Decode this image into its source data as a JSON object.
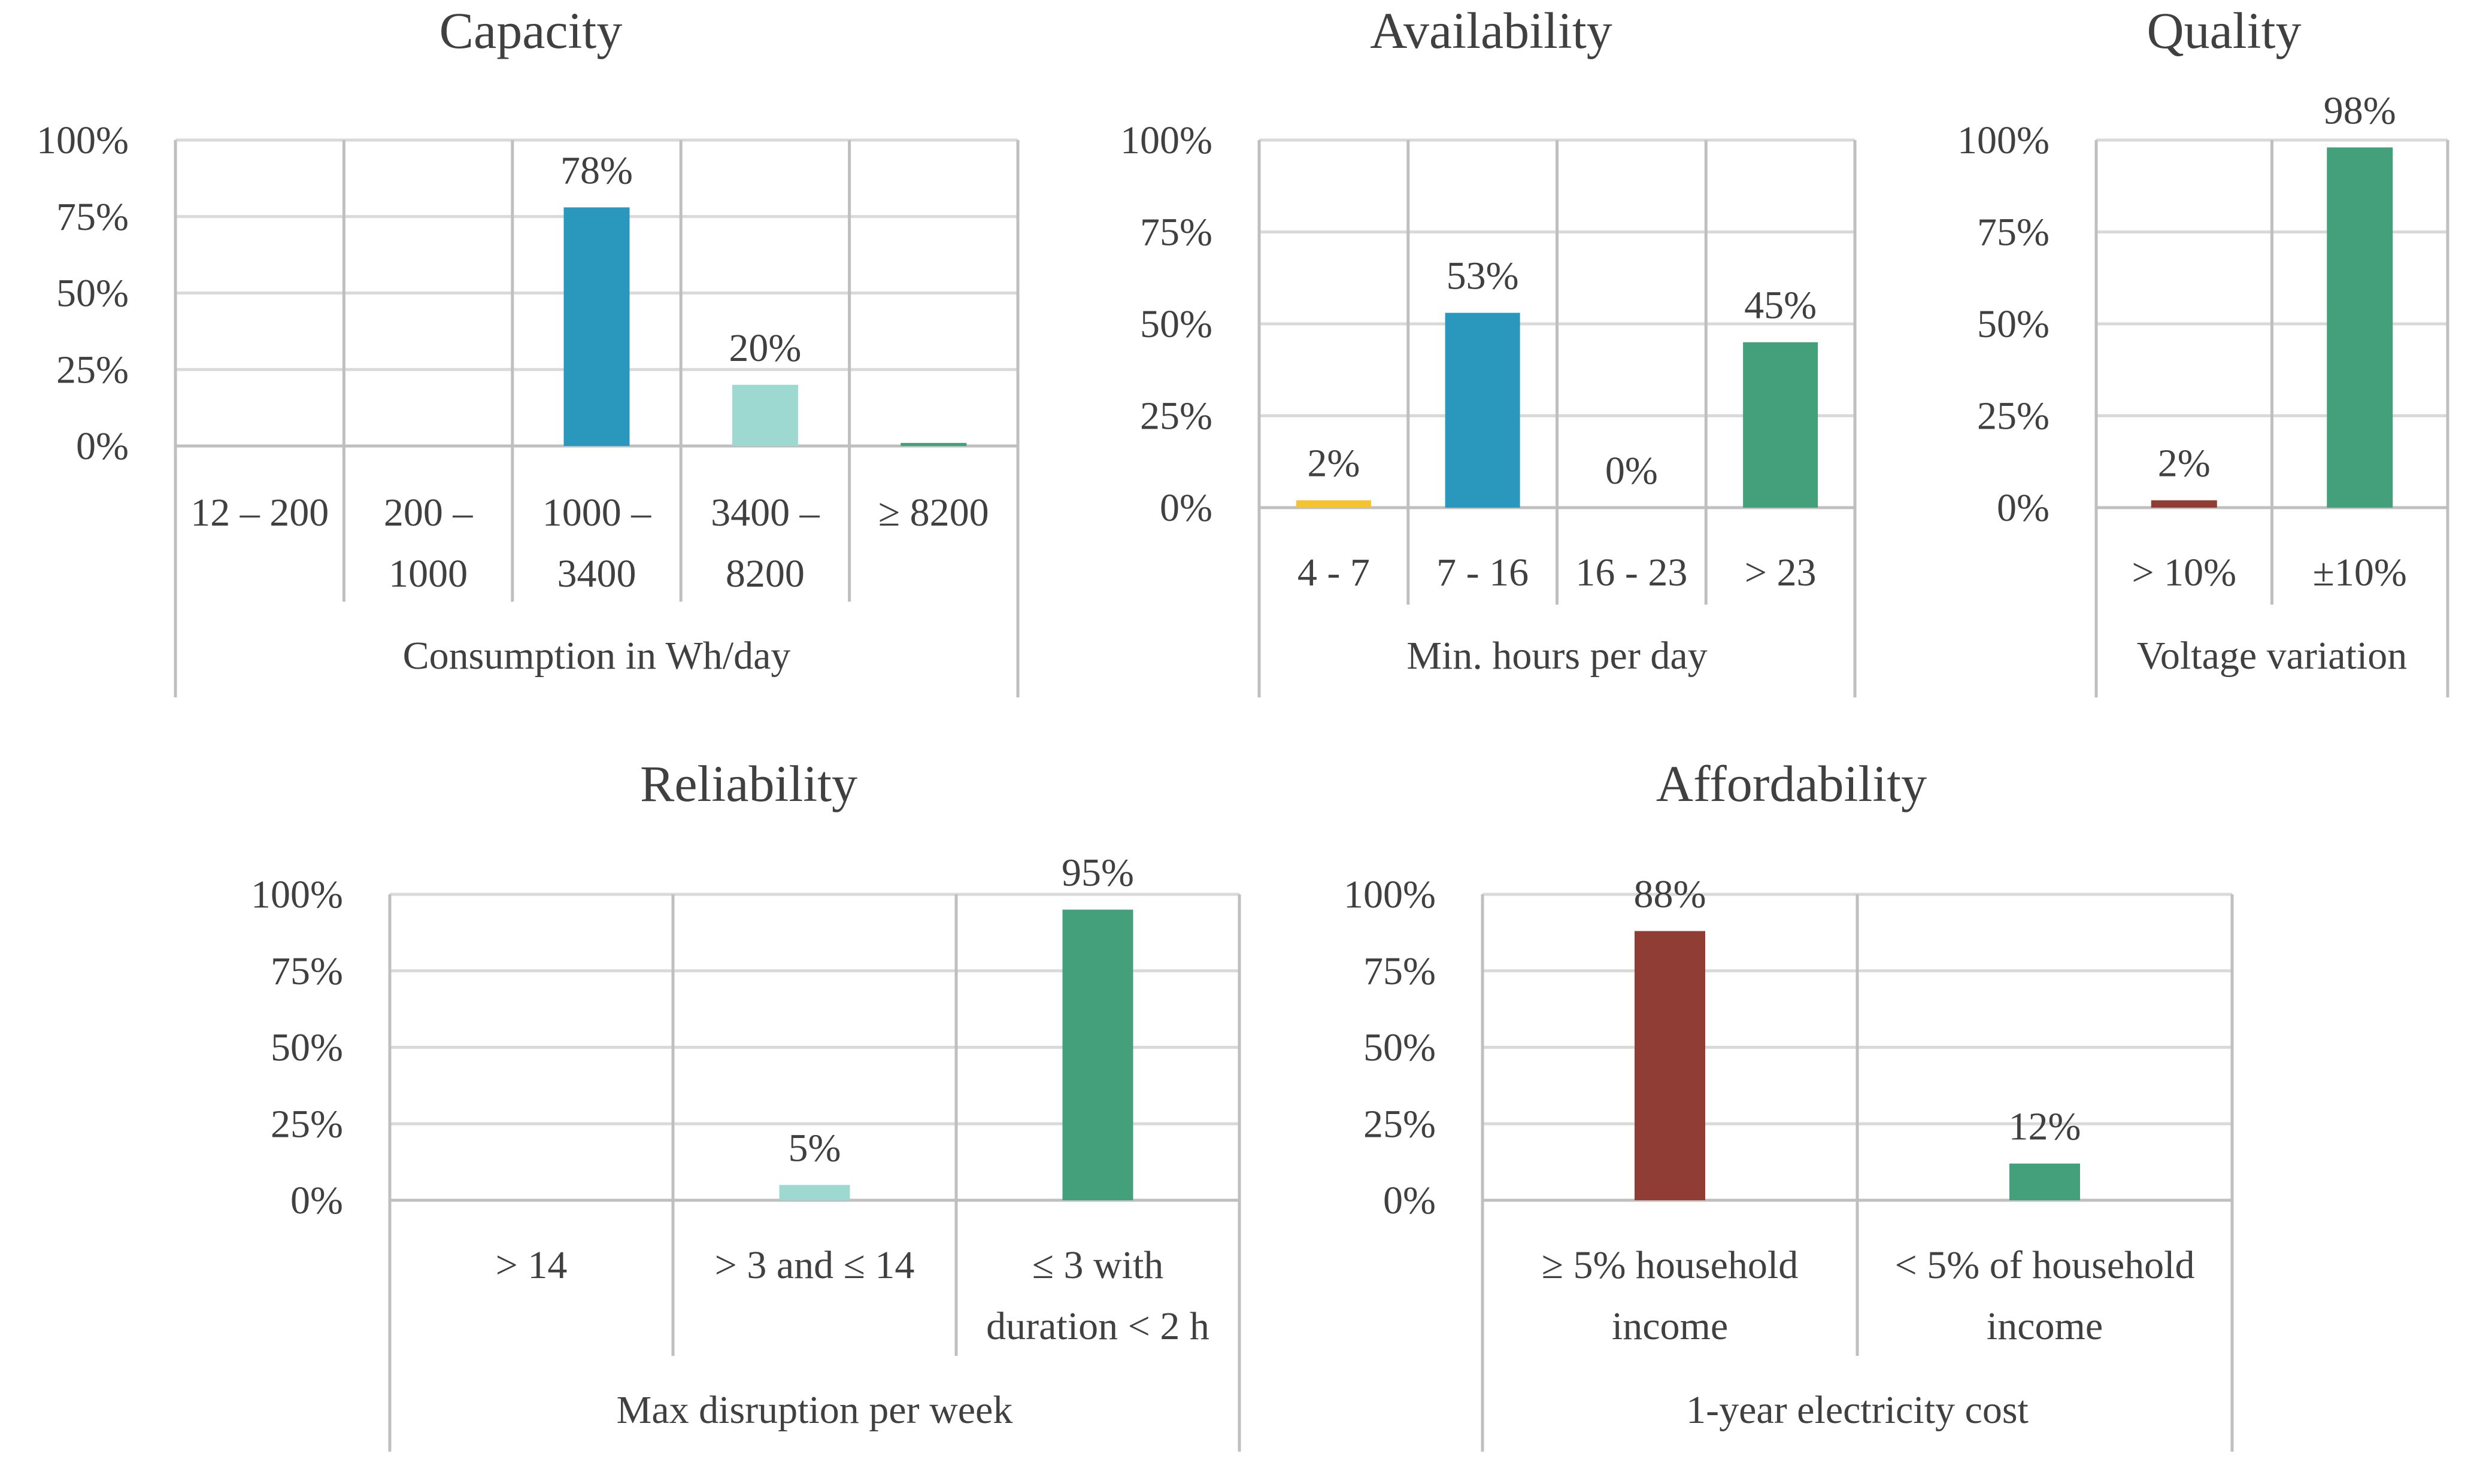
{
  "colors": {
    "yellow": "#f4c430",
    "blue": "#2a97bc",
    "lightteal": "#9ed9d1",
    "green": "#43a07a",
    "red": "#8f3d35"
  },
  "chart_data": [
    {
      "id": "capacity",
      "type": "bar",
      "title": "Capacity",
      "xlabel": "Consumption in Wh/day",
      "ylim": [
        0,
        100
      ],
      "yticks": [
        "0%",
        "25%",
        "50%",
        "75%",
        "100%"
      ],
      "categories": [
        [
          "12 – 200"
        ],
        [
          "200 –",
          "1000"
        ],
        [
          "1000 –",
          "3400"
        ],
        [
          "3400 –",
          "8200"
        ],
        [
          "≥ 8200"
        ]
      ],
      "values": [
        0,
        0,
        78,
        20,
        1
      ],
      "labels": [
        "",
        "",
        "78%",
        "20%",
        ""
      ],
      "bar_colors": [
        "blue",
        "blue",
        "blue",
        "lightteal",
        "green"
      ]
    },
    {
      "id": "availability",
      "type": "bar",
      "title": "Availability",
      "xlabel": "Min. hours per day",
      "ylim": [
        0,
        100
      ],
      "yticks": [
        "0%",
        "25%",
        "50%",
        "75%",
        "100%"
      ],
      "categories": [
        [
          "4 - 7"
        ],
        [
          "7 - 16"
        ],
        [
          "16 - 23"
        ],
        [
          "> 23"
        ]
      ],
      "values": [
        2,
        53,
        0,
        45
      ],
      "labels": [
        "2%",
        "53%",
        "0%",
        "45%"
      ],
      "bar_colors": [
        "yellow",
        "blue",
        "lightteal",
        "green"
      ]
    },
    {
      "id": "quality",
      "type": "bar",
      "title": "Quality",
      "xlabel": "Voltage variation",
      "ylim": [
        0,
        100
      ],
      "yticks": [
        "0%",
        "25%",
        "50%",
        "75%",
        "100%"
      ],
      "categories": [
        [
          "> 10%"
        ],
        [
          "±10%"
        ]
      ],
      "values": [
        2,
        98
      ],
      "labels": [
        "2%",
        "98%"
      ],
      "bar_colors": [
        "red",
        "green"
      ]
    },
    {
      "id": "reliability",
      "type": "bar",
      "title": "Reliability",
      "xlabel": "Max disruption per week",
      "ylim": [
        0,
        100
      ],
      "yticks": [
        "0%",
        "25%",
        "50%",
        "75%",
        "100%"
      ],
      "categories": [
        [
          "> 14"
        ],
        [
          "> 3 and ≤ 14"
        ],
        [
          "≤ 3 with",
          "duration < 2 h"
        ]
      ],
      "values": [
        0,
        5,
        95
      ],
      "labels": [
        "",
        "5%",
        "95%"
      ],
      "bar_colors": [
        "red",
        "lightteal",
        "green"
      ]
    },
    {
      "id": "affordability",
      "type": "bar",
      "title": "Affordability",
      "xlabel": "1-year electricity cost",
      "ylim": [
        0,
        100
      ],
      "yticks": [
        "0%",
        "25%",
        "50%",
        "75%",
        "100%"
      ],
      "categories": [
        [
          "≥ 5% household",
          "income"
        ],
        [
          "< 5% of household",
          "income"
        ]
      ],
      "values": [
        88,
        12
      ],
      "labels": [
        "88%",
        "12%"
      ],
      "bar_colors": [
        "red",
        "green"
      ]
    }
  ]
}
